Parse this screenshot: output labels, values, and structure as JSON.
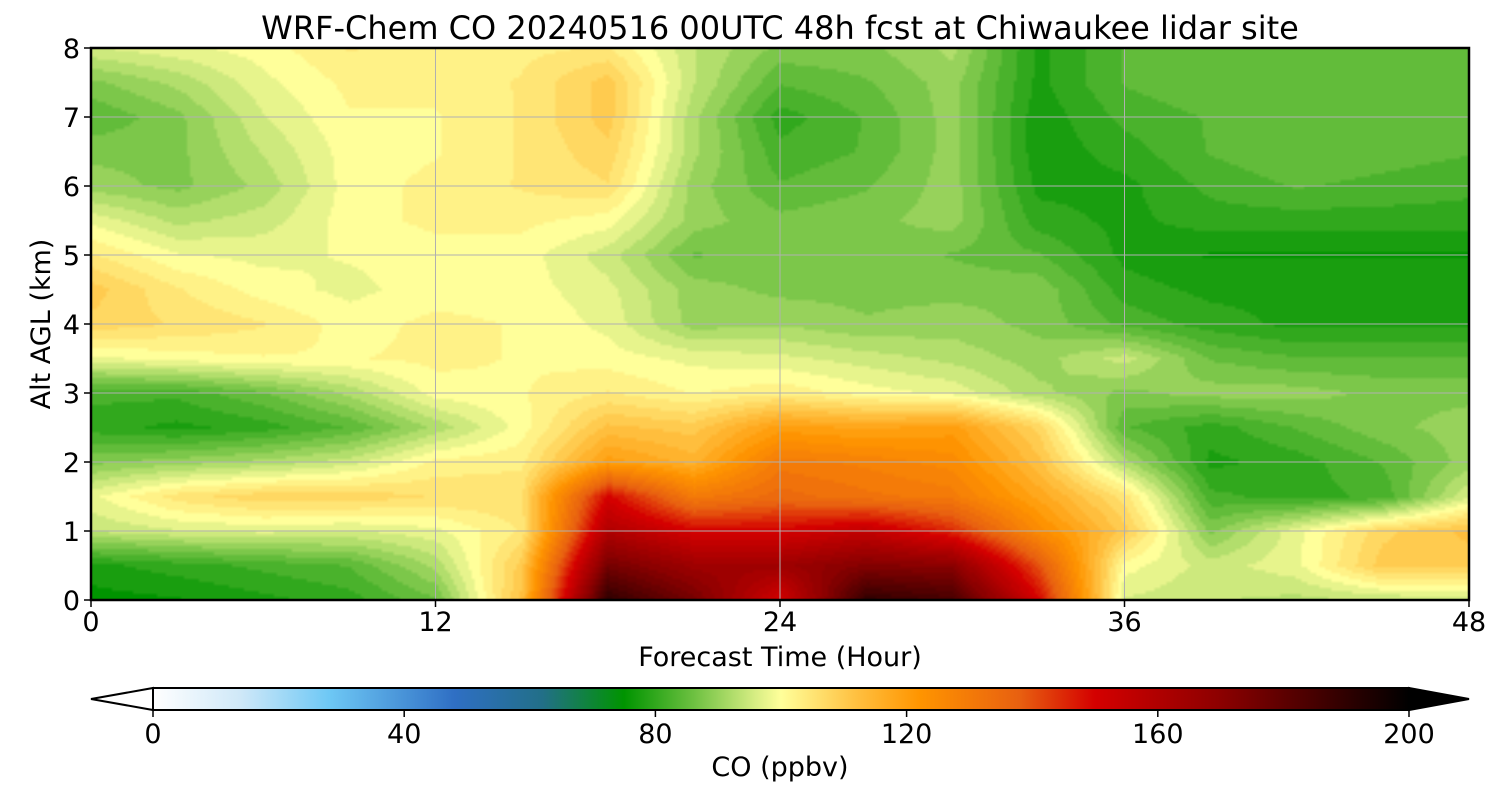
{
  "chart_data": {
    "type": "heatmap",
    "title": "WRF-Chem CO  20240516 00UTC 48h fcst at Chiwaukee lidar site",
    "xlabel": "Forecast Time (Hour)",
    "ylabel": "Alt AGL (km)",
    "xlim": [
      0,
      48
    ],
    "ylim": [
      0,
      8
    ],
    "xticks": [
      "0",
      "12",
      "24",
      "36",
      "48"
    ],
    "yticks": [
      "0",
      "1",
      "2",
      "3",
      "4",
      "5",
      "6",
      "7",
      "8"
    ],
    "grid": true,
    "colorbar": {
      "label": "CO  (ppbv)",
      "range": [
        0,
        200
      ],
      "ticks": [
        "0",
        "40",
        "80",
        "120",
        "160",
        "200"
      ],
      "extend": "both",
      "stops": [
        {
          "v": 0,
          "color": "#ffffff"
        },
        {
          "v": 14,
          "color": "#cfe8f8"
        },
        {
          "v": 28,
          "color": "#6ec8f5"
        },
        {
          "v": 48,
          "color": "#2f6fc4"
        },
        {
          "v": 62,
          "color": "#226f88"
        },
        {
          "v": 75,
          "color": "#009400"
        },
        {
          "v": 86,
          "color": "#6cc040"
        },
        {
          "v": 96,
          "color": "#d8ee84"
        },
        {
          "v": 100,
          "color": "#ffff9a"
        },
        {
          "v": 112,
          "color": "#ffc040"
        },
        {
          "v": 122,
          "color": "#ff9500"
        },
        {
          "v": 138,
          "color": "#e86010"
        },
        {
          "v": 150,
          "color": "#d40000"
        },
        {
          "v": 170,
          "color": "#8c0000"
        },
        {
          "v": 200,
          "color": "#000000"
        }
      ]
    },
    "time_hours": [
      0,
      3,
      6,
      9,
      12,
      15,
      18,
      21,
      24,
      27,
      30,
      33,
      36,
      39,
      42,
      45,
      48
    ],
    "altitudes_km": [
      0,
      0.5,
      1,
      1.5,
      2,
      2.5,
      3,
      3.5,
      4,
      4.5,
      5,
      5.5,
      6,
      6.5,
      7,
      7.5,
      8
    ],
    "values_ppbv": [
      [
        75,
        76,
        78,
        80,
        86,
        112,
        190,
        175,
        150,
        190,
        185,
        150,
        96,
        94,
        93,
        94,
        95
      ],
      [
        78,
        80,
        82,
        84,
        92,
        110,
        175,
        165,
        165,
        172,
        170,
        140,
        100,
        95,
        98,
        110,
        110
      ],
      [
        94,
        96,
        97,
        96,
        98,
        104,
        160,
        150,
        150,
        155,
        145,
        125,
        110,
        88,
        98,
        108,
        112
      ],
      [
        98,
        105,
        108,
        108,
        106,
        106,
        150,
        130,
        135,
        132,
        130,
        118,
        105,
        82,
        80,
        82,
        96
      ],
      [
        88,
        90,
        92,
        95,
        102,
        103,
        120,
        115,
        130,
        128,
        125,
        112,
        92,
        78,
        80,
        84,
        90
      ],
      [
        80,
        78,
        80,
        84,
        92,
        100,
        112,
        110,
        120,
        118,
        120,
        108,
        84,
        80,
        84,
        88,
        90
      ],
      [
        82,
        82,
        86,
        92,
        100,
        101,
        104,
        101,
        103,
        100,
        98,
        92,
        88,
        90,
        90,
        88,
        88
      ],
      [
        98,
        100,
        101,
        101,
        102,
        101,
        100,
        98,
        97,
        95,
        93,
        90,
        95,
        86,
        84,
        84,
        84
      ],
      [
        108,
        106,
        104,
        100,
        102,
        101,
        98,
        90,
        91,
        89,
        90,
        88,
        83,
        80,
        78,
        78,
        78
      ],
      [
        110,
        104,
        100,
        98,
        100,
        100,
        97,
        90,
        88,
        88,
        88,
        88,
        80,
        78,
        78,
        78,
        78
      ],
      [
        104,
        99,
        98,
        99,
        100,
        100,
        95,
        86,
        87,
        88,
        86,
        84,
        78,
        76,
        76,
        76,
        76
      ],
      [
        98,
        93,
        95,
        100,
        102,
        102,
        100,
        90,
        87,
        88,
        90,
        80,
        78,
        80,
        80,
        80,
        80
      ],
      [
        90,
        88,
        92,
        100,
        102,
        104,
        106,
        90,
        84,
        86,
        90,
        78,
        78,
        82,
        84,
        83,
        82
      ],
      [
        88,
        88,
        94,
        100,
        101,
        104,
        108,
        92,
        82,
        84,
        90,
        77,
        80,
        84,
        86,
        85,
        84
      ],
      [
        84,
        88,
        96,
        101,
        101,
        104,
        110,
        92,
        80,
        84,
        90,
        77,
        82,
        84,
        84,
        84,
        84
      ],
      [
        88,
        92,
        98,
        102,
        102,
        104,
        110,
        94,
        84,
        86,
        90,
        78,
        84,
        86,
        84,
        84,
        84
      ],
      [
        96,
        98,
        100,
        104,
        102,
        103,
        104,
        94,
        88,
        88,
        92,
        78,
        84,
        86,
        84,
        84,
        84
      ]
    ]
  }
}
